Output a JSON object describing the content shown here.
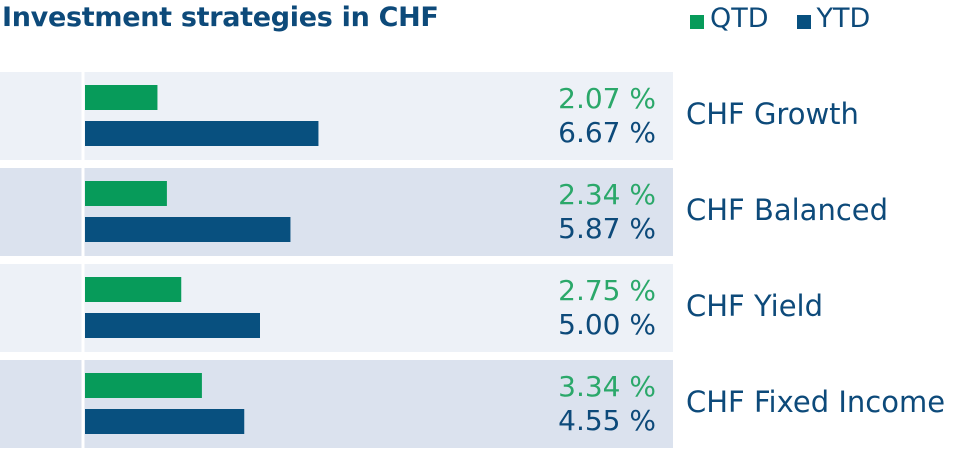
{
  "title": "Investment strategies in CHF",
  "legend": [
    {
      "label": "QTD",
      "color": "#079b5a"
    },
    {
      "label": "YTD",
      "color": "#08507f"
    }
  ],
  "colors": {
    "qtd": "#079b5a",
    "ytd": "#08507f",
    "qtd_text": "#2ba86a",
    "ytd_text": "#0d4a7a",
    "row_light": "#edf1f7",
    "row_dark": "#dbe2ee",
    "label_text": "#0d4a7a"
  },
  "chart_data": {
    "type": "bar",
    "orientation": "horizontal",
    "title": "Investment strategies in CHF",
    "categories": [
      "CHF Growth",
      "CHF Balanced",
      "CHF Yield",
      "CHF Fixed Income"
    ],
    "series": [
      {
        "name": "QTD",
        "values": [
          2.07,
          2.34,
          2.75,
          3.34
        ],
        "labels": [
          "2.07 %",
          "2.34 %",
          "2.75 %",
          "3.34 %"
        ]
      },
      {
        "name": "YTD",
        "values": [
          6.67,
          5.87,
          5.0,
          4.55
        ],
        "labels": [
          "6.67 %",
          "5.87 %",
          "5.00 %",
          "4.55 %"
        ]
      }
    ],
    "unit": "%",
    "xlim": [
      0,
      12.5
    ],
    "grid": false,
    "legend_position": "top-right"
  }
}
